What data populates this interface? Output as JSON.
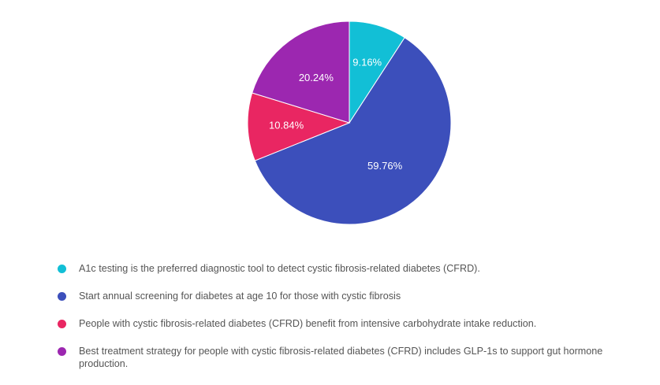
{
  "chart_data": {
    "type": "pie",
    "start": "top, clockwise",
    "slices": [
      {
        "label": "A1c testing is the preferred diagnostic tool to detect cystic fibrosis-related diabetes (CFRD).",
        "value": 9.16,
        "display": "9.16%",
        "color": "#12bfd6"
      },
      {
        "label": "Start annual screening for diabetes at age 10 for those with cystic fibrosis",
        "value": 59.76,
        "display": "59.76%",
        "color": "#3c4fbb"
      },
      {
        "label": "People with cystic fibrosis-related diabetes (CFRD) benefit from intensive carbohydrate intake reduction.",
        "value": 10.84,
        "display": "10.84%",
        "color": "#e92662"
      },
      {
        "label": "Best treatment strategy for people with cystic fibrosis-related diabetes (CFRD) includes GLP-1s to support gut hormone production.",
        "value": 20.24,
        "display": "20.24%",
        "color": "#9c27b0"
      }
    ],
    "legend_position": "bottom"
  }
}
